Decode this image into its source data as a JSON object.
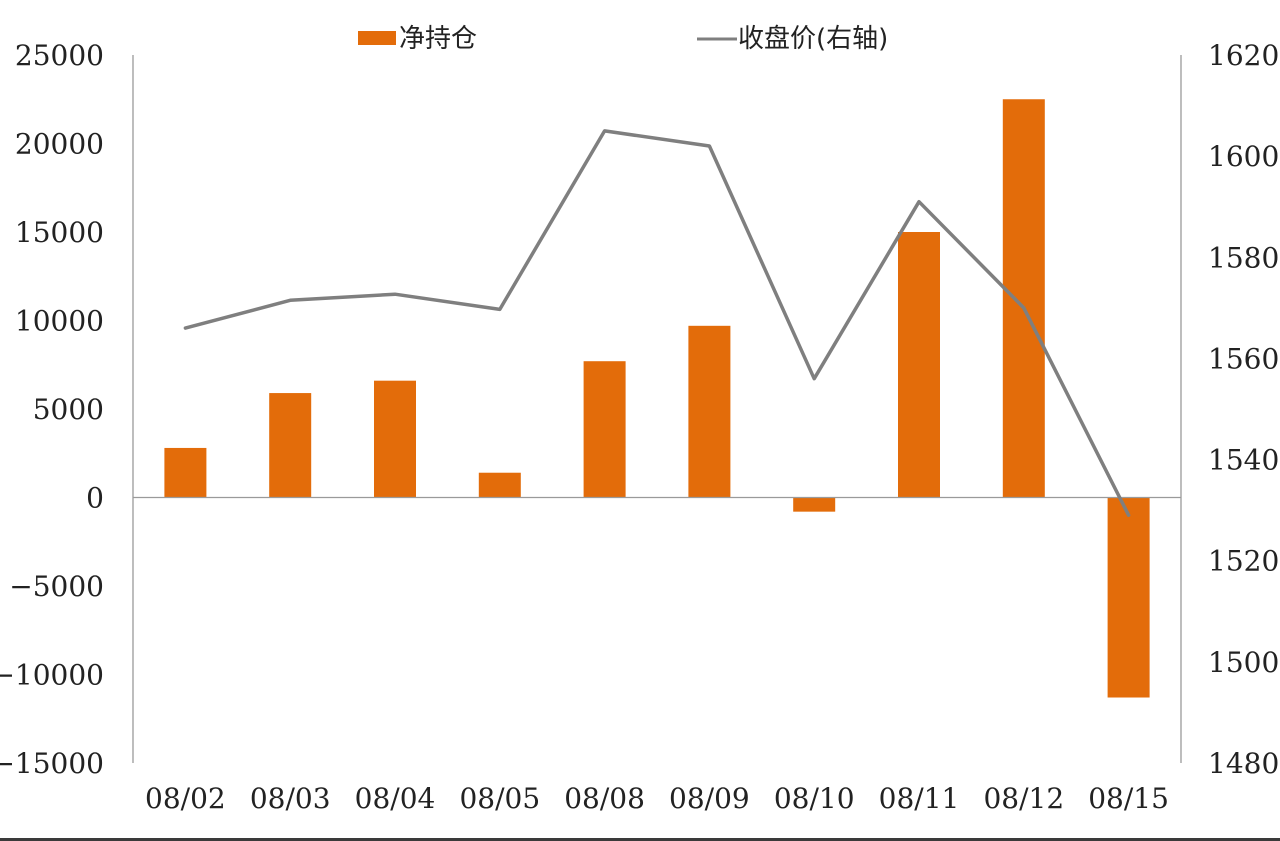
{
  "chart_data": {
    "type": "bar",
    "categories": [
      "08/02",
      "08/03",
      "08/04",
      "08/05",
      "08/08",
      "08/09",
      "08/10",
      "08/11",
      "08/12",
      "08/15"
    ],
    "series": [
      {
        "name": "净持仓",
        "type": "bar",
        "axis": "left",
        "color": "#E36C0A",
        "values": [
          2800,
          5900,
          6600,
          1400,
          7700,
          9700,
          -800,
          15000,
          22500,
          -11300
        ]
      },
      {
        "name": "收盘价(右轴)",
        "type": "line",
        "axis": "right",
        "color": "#7F7F7F",
        "values": [
          1566,
          1571.5,
          1572.7,
          1569.7,
          1605,
          1602,
          1556,
          1591,
          1570,
          1529
        ]
      }
    ],
    "y_left": {
      "ylim": [
        -15000,
        25000
      ],
      "ticks": [
        25000,
        20000,
        15000,
        10000,
        5000,
        0,
        -5000,
        -10000,
        -15000
      ]
    },
    "y_right": {
      "ylim": [
        1480,
        1620
      ],
      "ticks": [
        1620,
        1600,
        1580,
        1560,
        1540,
        1520,
        1500,
        1480
      ]
    },
    "legend_position": "top",
    "grid": false,
    "title": "",
    "xlabel": "",
    "ylabel": ""
  }
}
